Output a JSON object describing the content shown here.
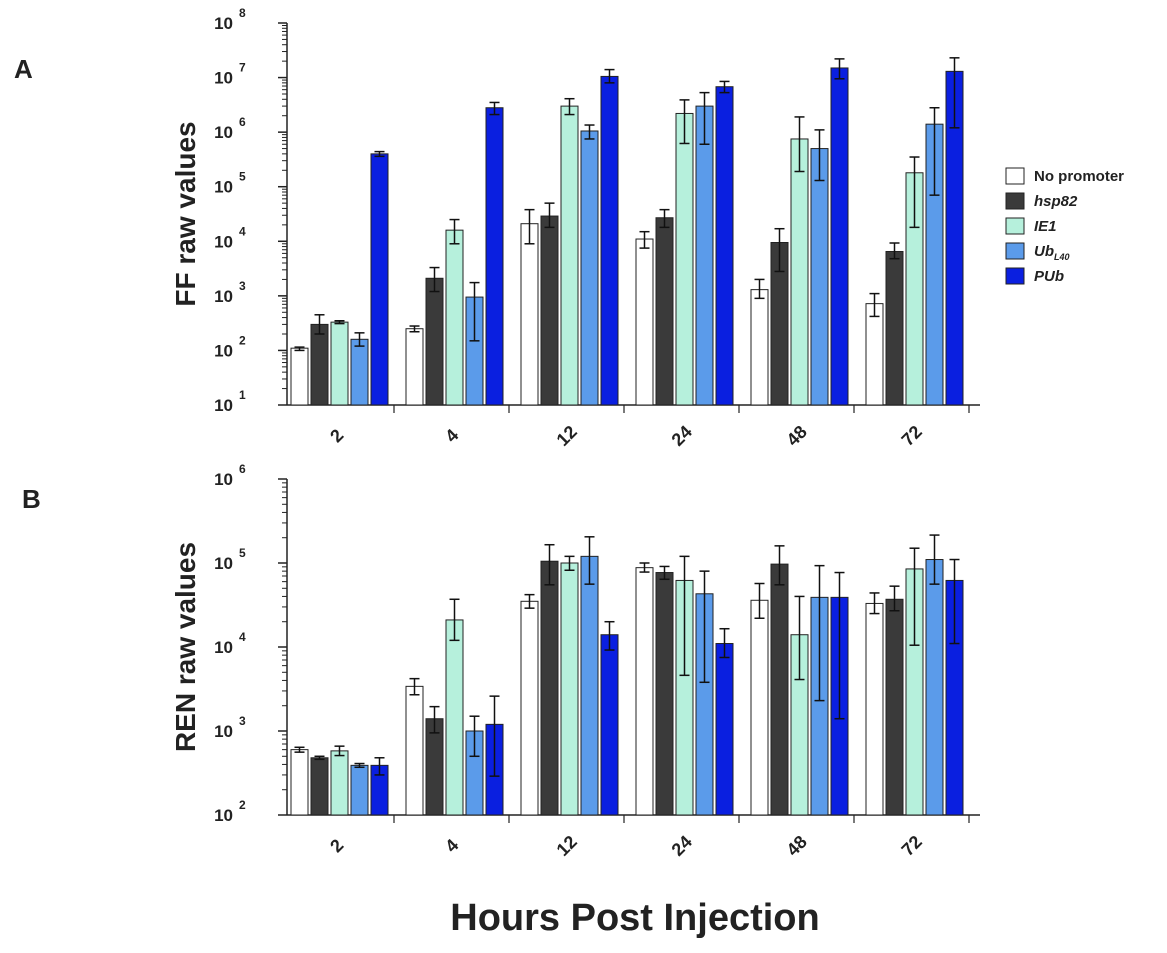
{
  "xlabel": "Hours Post Injection",
  "legend": {
    "position": "right",
    "entries": [
      {
        "label": "No promoter",
        "italic": false,
        "color": "#ffffff"
      },
      {
        "label": "hsp82",
        "italic": true,
        "color": "#3a3a3a"
      },
      {
        "label": "IE1",
        "italic": true,
        "color": "#b6f0dc"
      },
      {
        "label": "Ub",
        "sub": "L40",
        "italic": true,
        "color": "#5b9bea"
      },
      {
        "label": "PUb",
        "italic": true,
        "color": "#0a1fe0"
      }
    ]
  },
  "chart_data": [
    {
      "type": "bar",
      "panel": "A",
      "ylabel": "FF raw  values",
      "yscale": "log",
      "ylim": [
        10,
        100000000
      ],
      "yticks": [
        {
          "base": "10",
          "exp": "1"
        },
        {
          "base": "10",
          "exp": "2"
        },
        {
          "base": "10",
          "exp": "3"
        },
        {
          "base": "10",
          "exp": "4"
        },
        {
          "base": "10",
          "exp": "5"
        },
        {
          "base": "10",
          "exp": "6"
        },
        {
          "base": "10",
          "exp": "7"
        },
        {
          "base": "10",
          "exp": "8"
        }
      ],
      "categories": [
        "2",
        "4",
        "12",
        "24",
        "48",
        "72"
      ],
      "series": [
        {
          "name": "No promoter",
          "values": [
            110,
            250,
            21000,
            11000,
            1300,
            720
          ],
          "err_low": [
            100,
            220,
            9000,
            7500,
            900,
            420
          ],
          "err_high": [
            115,
            280,
            38000,
            15000,
            2000,
            1100
          ]
        },
        {
          "name": "hsp82",
          "values": [
            300,
            2100,
            29000,
            27000,
            9500,
            6500
          ],
          "err_low": [
            200,
            1200,
            18000,
            18000,
            2800,
            4800
          ],
          "err_high": [
            450,
            3300,
            50000,
            38000,
            17000,
            9300
          ]
        },
        {
          "name": "IE1",
          "values": [
            330,
            16000,
            3000000,
            2200000,
            750000,
            180000
          ],
          "err_low": [
            310,
            9000,
            2100000,
            620000,
            190000,
            18000
          ],
          "err_high": [
            350,
            25000,
            4100000,
            3900000,
            1900000,
            350000
          ]
        },
        {
          "name": "UbL40",
          "values": [
            160,
            950,
            1050000,
            3000000,
            500000,
            1400000
          ],
          "err_low": [
            120,
            150,
            750000,
            600000,
            130000,
            70000
          ],
          "err_high": [
            210,
            1750,
            1350000,
            5300000,
            1100000,
            2800000
          ]
        },
        {
          "name": "PUb",
          "values": [
            400000,
            2800000,
            10500000,
            6800000,
            15000000,
            13000000
          ],
          "err_low": [
            360000,
            2100000,
            8000000,
            5300000,
            9500000,
            1200000
          ],
          "err_high": [
            440000,
            3500000,
            14000000,
            8500000,
            22000000,
            23000000
          ]
        }
      ]
    },
    {
      "type": "bar",
      "panel": "B",
      "ylabel": "REN raw  values",
      "yscale": "log",
      "ylim": [
        100,
        1000000
      ],
      "yticks": [
        {
          "base": "10",
          "exp": "2"
        },
        {
          "base": "10",
          "exp": "3"
        },
        {
          "base": "10",
          "exp": "4"
        },
        {
          "base": "10",
          "exp": "5"
        },
        {
          "base": "10",
          "exp": "6"
        }
      ],
      "categories": [
        "2",
        "4",
        "12",
        "24",
        "48",
        "72"
      ],
      "series": [
        {
          "name": "No promoter",
          "values": [
            600,
            3400,
            35000,
            88000,
            36000,
            33000
          ],
          "err_low": [
            560,
            2700,
            29000,
            78000,
            22000,
            25000
          ],
          "err_high": [
            640,
            4200,
            42000,
            100000,
            57000,
            44000
          ]
        },
        {
          "name": "hsp82",
          "values": [
            480,
            1400,
            105000,
            77000,
            97000,
            37000
          ],
          "err_low": [
            460,
            950,
            55000,
            64000,
            55000,
            27000
          ],
          "err_high": [
            500,
            1950,
            165000,
            91000,
            160000,
            53000
          ]
        },
        {
          "name": "IE1",
          "values": [
            580,
            21000,
            100000,
            62000,
            14000,
            85000
          ],
          "err_low": [
            510,
            12000,
            82000,
            4600,
            4100,
            10500
          ],
          "err_high": [
            660,
            37000,
            120000,
            120000,
            40000,
            150000
          ]
        },
        {
          "name": "UbL40",
          "values": [
            390,
            1000,
            120000,
            43000,
            39000,
            110000
          ],
          "err_low": [
            370,
            500,
            56000,
            3800,
            2300,
            56000
          ],
          "err_high": [
            410,
            1500,
            205000,
            80000,
            93000,
            215000
          ]
        },
        {
          "name": "PUb",
          "values": [
            390,
            1200,
            14000,
            11000,
            39000,
            62000
          ],
          "err_low": [
            300,
            290,
            9200,
            7500,
            1400,
            11000
          ],
          "err_high": [
            480,
            2600,
            20000,
            16500,
            77000,
            110000
          ]
        }
      ]
    }
  ]
}
